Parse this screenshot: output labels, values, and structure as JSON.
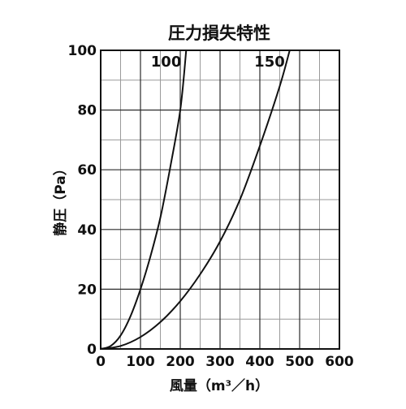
{
  "chart_data": {
    "type": "line",
    "title": "圧力損失特性",
    "xlabel": "風量（m³／h）",
    "ylabel": "静圧（Pa）",
    "xlim": [
      0,
      600
    ],
    "ylim": [
      0,
      100
    ],
    "x_major_ticks": [
      "0",
      "100",
      "200",
      "300",
      "400",
      "500",
      "600"
    ],
    "y_major_ticks": [
      "0",
      "20",
      "40",
      "60",
      "80",
      "100"
    ],
    "grid": true,
    "legend": "none",
    "series": [
      {
        "name": "100",
        "x": [
          0,
          25,
          50,
          75,
          100,
          125,
          150,
          175,
          200,
          215
        ],
        "y": [
          0,
          1,
          4.5,
          11,
          20,
          31,
          44,
          61,
          80,
          100
        ]
      },
      {
        "name": "150",
        "x": [
          0,
          50,
          100,
          150,
          200,
          250,
          300,
          350,
          400,
          450,
          475
        ],
        "y": [
          0,
          1,
          4,
          9,
          16,
          25,
          36,
          50,
          68,
          88,
          100
        ]
      }
    ]
  }
}
